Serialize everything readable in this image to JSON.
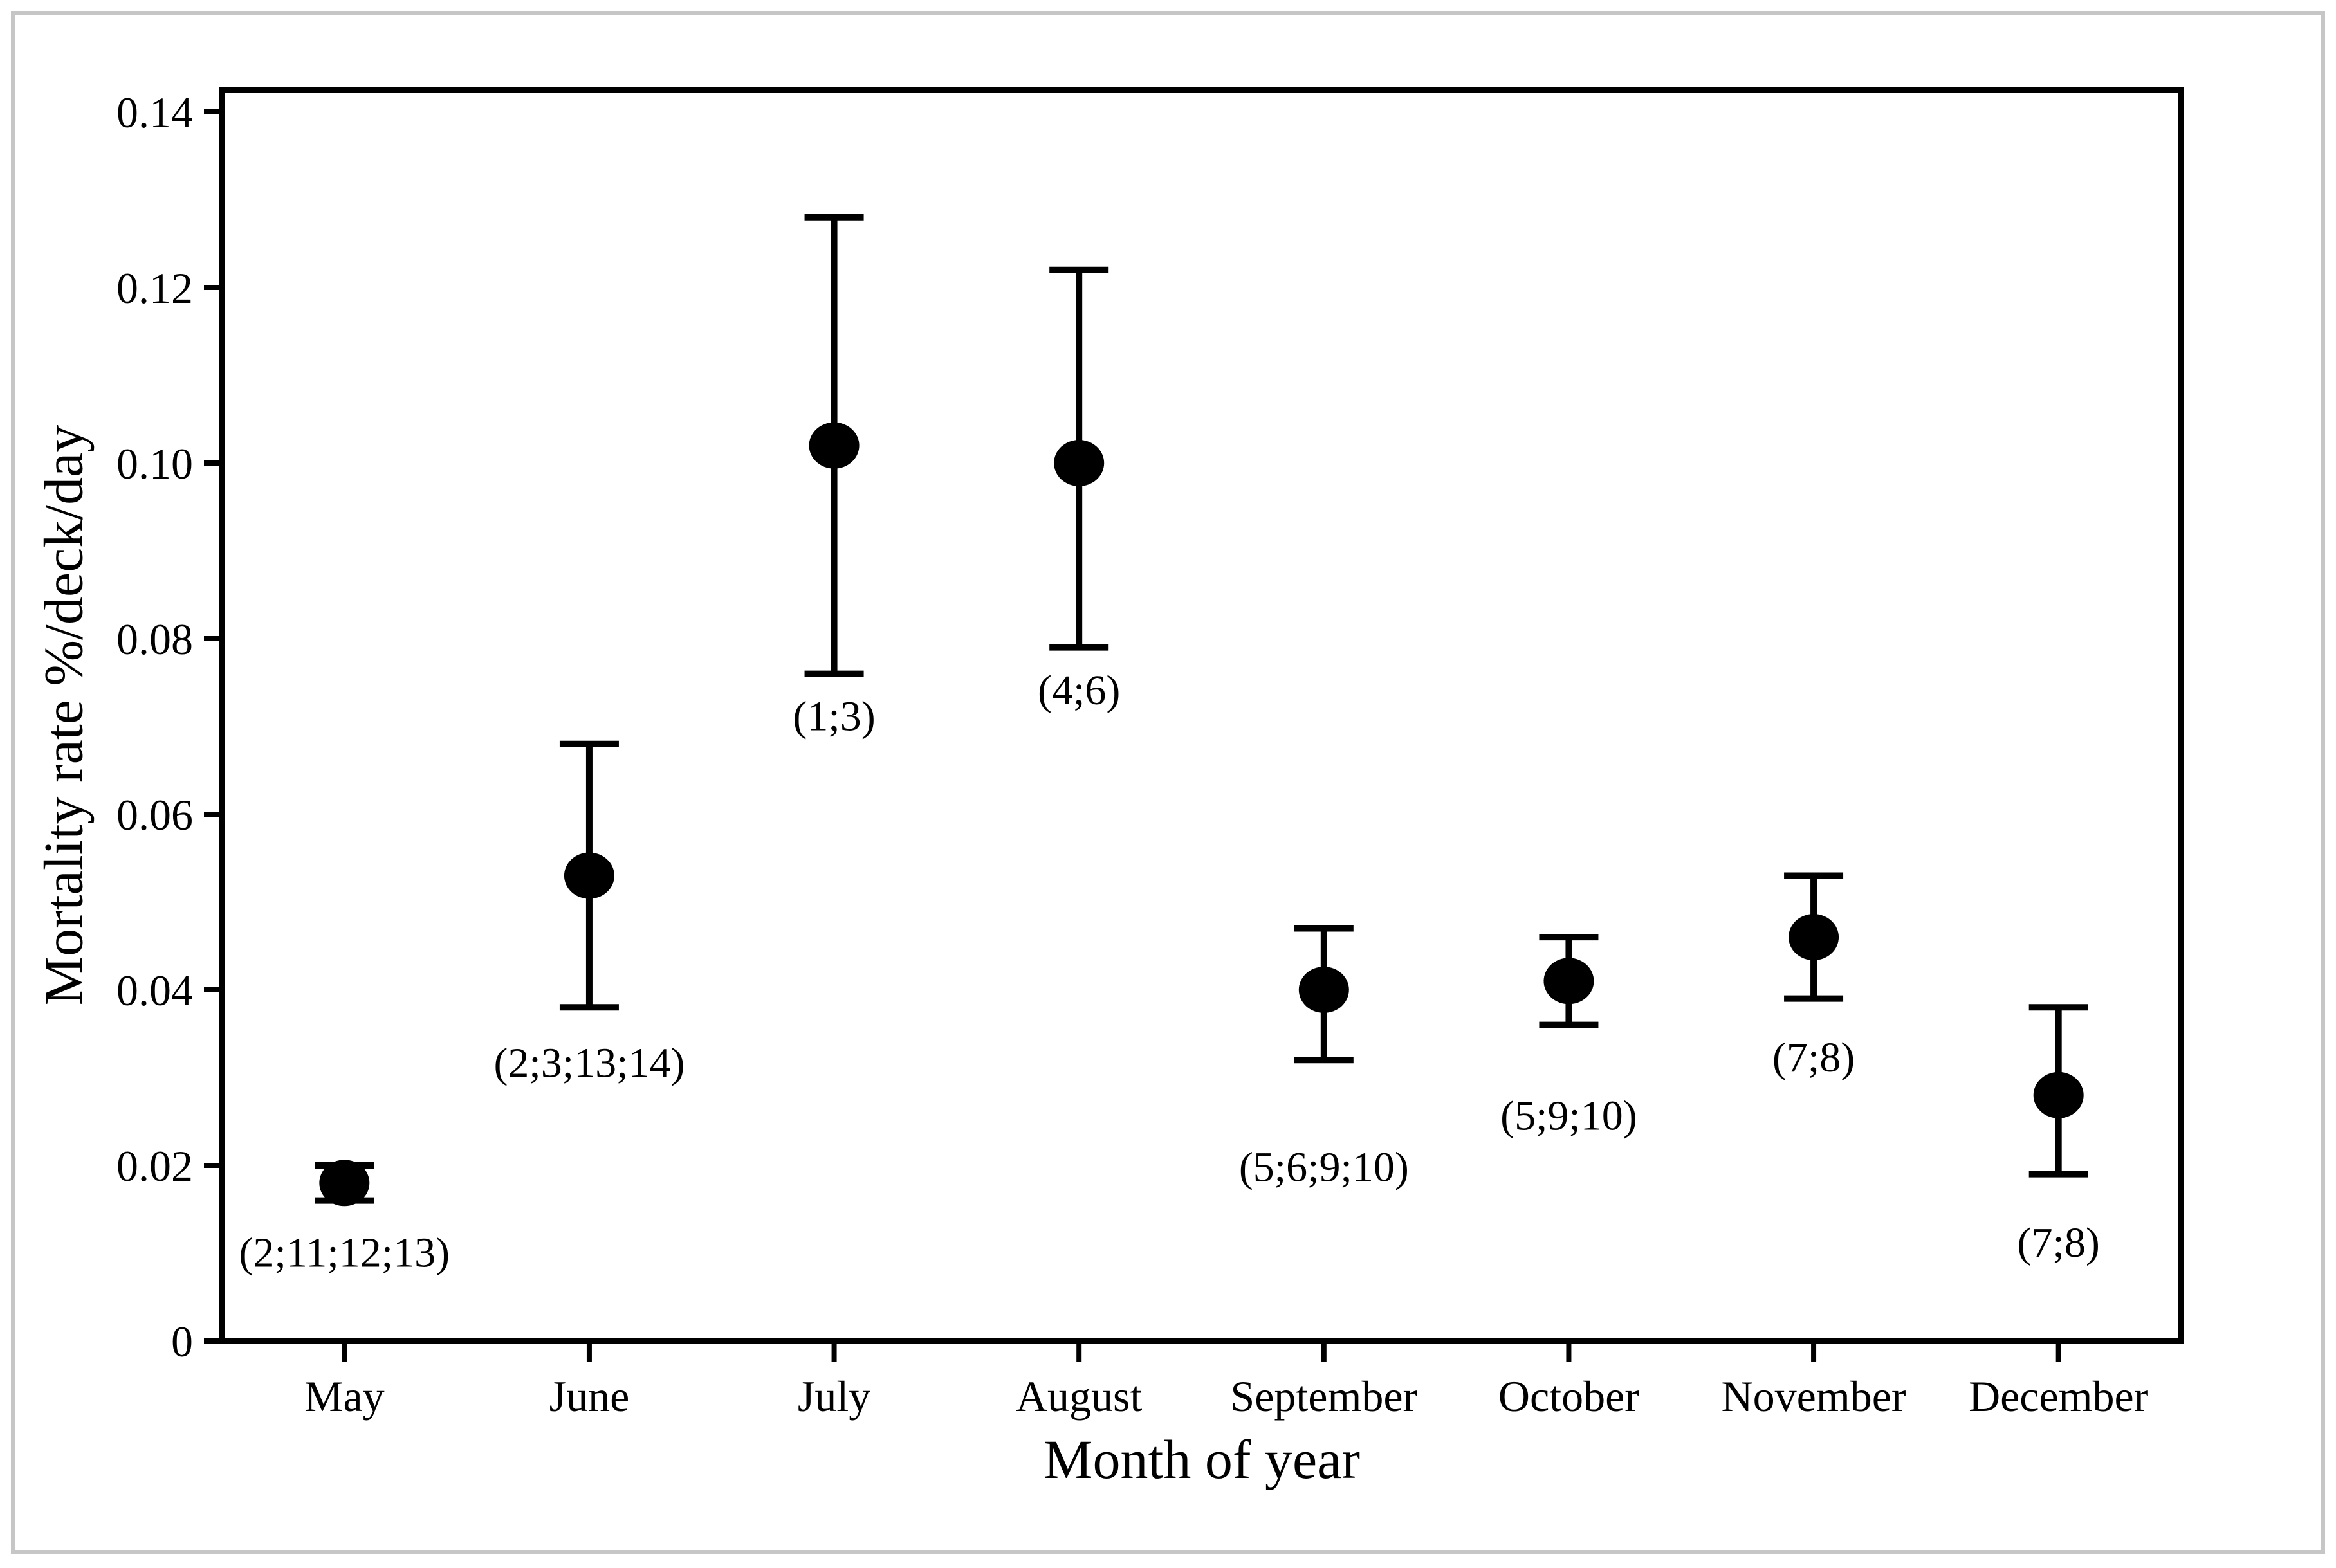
{
  "figure": {
    "background": "#ffffff",
    "border_color": "#c6c6c6"
  },
  "chart_data": {
    "type": "scatter",
    "title": "",
    "xlabel": "Month of year",
    "ylabel": "Mortality rate %/deck/day",
    "categories": [
      "May",
      "June",
      "July",
      "August",
      "September",
      "October",
      "November",
      "December"
    ],
    "series": [
      {
        "name": "Mortality rate",
        "values": [
          0.018,
          0.053,
          0.102,
          0.1,
          0.04,
          0.041,
          0.046,
          0.028
        ],
        "ci_low": [
          0.016,
          0.038,
          0.076,
          0.079,
          0.032,
          0.036,
          0.039,
          0.019
        ],
        "ci_high": [
          0.02,
          0.068,
          0.128,
          0.122,
          0.047,
          0.046,
          0.053,
          0.038
        ],
        "point_labels": [
          "(2;11;12;13)",
          "(2;3;13;14)",
          "(1;3)",
          "(4;6)",
          "(5;6;9;10)",
          "(5;9;10)",
          "(7;8)",
          "(7;8)"
        ]
      }
    ],
    "ylim": [
      0,
      0.14
    ],
    "yticks": {
      "values": [
        0,
        0.02,
        0.04,
        0.06,
        0.08,
        0.1,
        0.12,
        0.14
      ],
      "labels": [
        "0",
        "0.02",
        "0.04",
        "0.06",
        "0.08",
        "0.10",
        "0.12",
        "0.14"
      ]
    },
    "grid": false,
    "legend": null,
    "error_bars": true,
    "marker_color": "#000000",
    "axis_color": "#000000",
    "layout": {
      "label_dy": [
        80,
        85,
        65,
        65,
        165,
        140,
        90,
        105
      ]
    }
  }
}
